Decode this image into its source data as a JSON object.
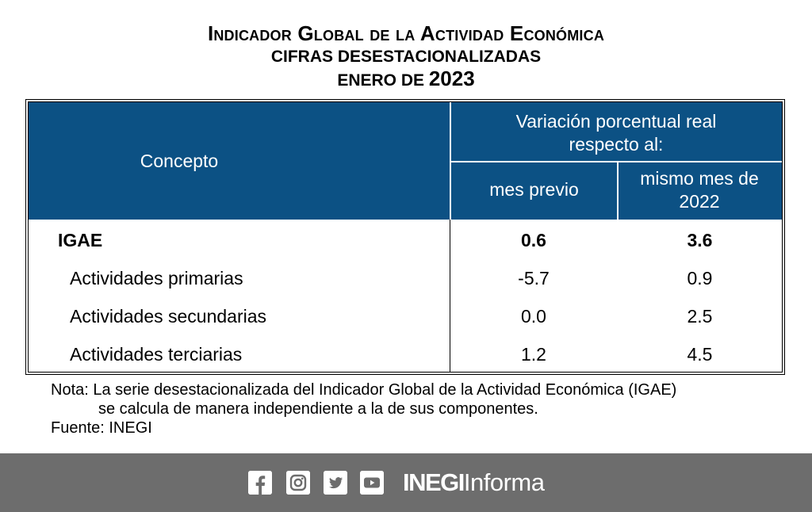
{
  "title": {
    "line1": "Indicador Global de la Actividad Económica",
    "line2": "CIFRAS DESESTACIONALIZADAS",
    "line3_prefix": "ENERO DE ",
    "line3_year": "2023"
  },
  "table": {
    "header": {
      "concepto": "Concepto",
      "variacion": "Variación porcentual real respecto al:",
      "col1": "mes previo",
      "col2": "mismo mes de 2022"
    },
    "rows": [
      {
        "label": "IGAE",
        "mes_previo": "0.6",
        "mismo_mes": "3.6"
      },
      {
        "label": "Actividades primarias",
        "mes_previo": "-5.7",
        "mismo_mes": "0.9"
      },
      {
        "label": "Actividades secundarias",
        "mes_previo": "0.0",
        "mismo_mes": "2.5"
      },
      {
        "label": "Actividades terciarias",
        "mes_previo": "1.2",
        "mismo_mes": "4.5"
      }
    ],
    "colors": {
      "header_bg": "#0c5184"
    }
  },
  "notes": {
    "nota_line1": "Nota: La serie desestacionalizada del Indicador Global de la Actividad Económica (IGAE)",
    "nota_line2": "se calcula de manera independiente a la de sus componentes.",
    "fuente": "Fuente: INEGI"
  },
  "footer": {
    "icons": [
      "facebook-icon",
      "instagram-icon",
      "twitter-icon",
      "youtube-icon"
    ],
    "brand_bold": "INEGI",
    "brand_light": "Informa",
    "bg_color": "#6d6d6d"
  }
}
